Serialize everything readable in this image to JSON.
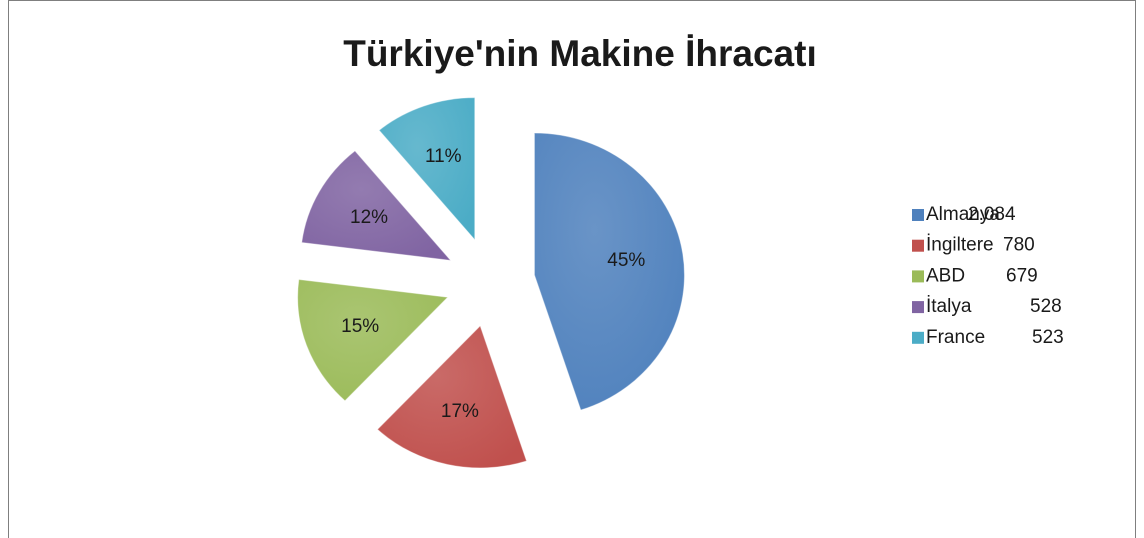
{
  "chart_data": {
    "type": "pie",
    "title": "Türkiye'nin Makine İhracatı",
    "categories": [
      "Almanya",
      "İngiltere",
      "ABD",
      "İtalya",
      "France"
    ],
    "values": [
      45,
      17,
      15,
      12,
      11
    ],
    "value_labels": [
      "45%",
      "17%",
      "15%",
      "12%",
      "11%"
    ],
    "colors": [
      "#4f81bd",
      "#c0504d",
      "#9bbb59",
      "#8064a2",
      "#4bacc6"
    ],
    "legend_values": [
      2084,
      780,
      679,
      528,
      523
    ],
    "legend_value_labels": [
      "2.084",
      "780",
      "679",
      "528",
      "523"
    ],
    "legend": "right"
  }
}
